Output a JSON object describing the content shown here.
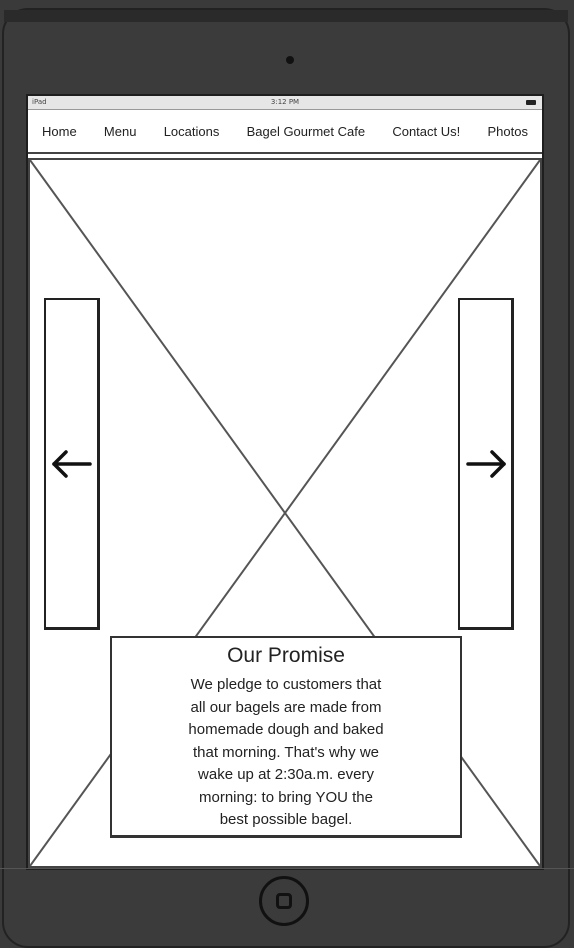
{
  "status_bar": {
    "carrier": "iPad",
    "time": "3:12 PM"
  },
  "nav": {
    "items": [
      {
        "label": "Home"
      },
      {
        "label": "Menu"
      },
      {
        "label": "Locations"
      },
      {
        "label": "Bagel Gourmet Cafe"
      },
      {
        "label": "Contact Us!"
      },
      {
        "label": "Photos"
      }
    ]
  },
  "carousel": {
    "prev_icon": "arrow-left-icon",
    "next_icon": "arrow-right-icon"
  },
  "promise": {
    "title": "Our Promise",
    "lines": [
      "We pledge to customers that",
      "all our bagels are made from",
      "homemade dough and baked",
      "that morning. That's why we",
      "wake up at 2:30a.m. every",
      "morning: to bring YOU the",
      "best possible bagel."
    ]
  },
  "colors": {
    "device": "#3b3b3b",
    "screen": "#ffffff",
    "ink": "#222222"
  }
}
